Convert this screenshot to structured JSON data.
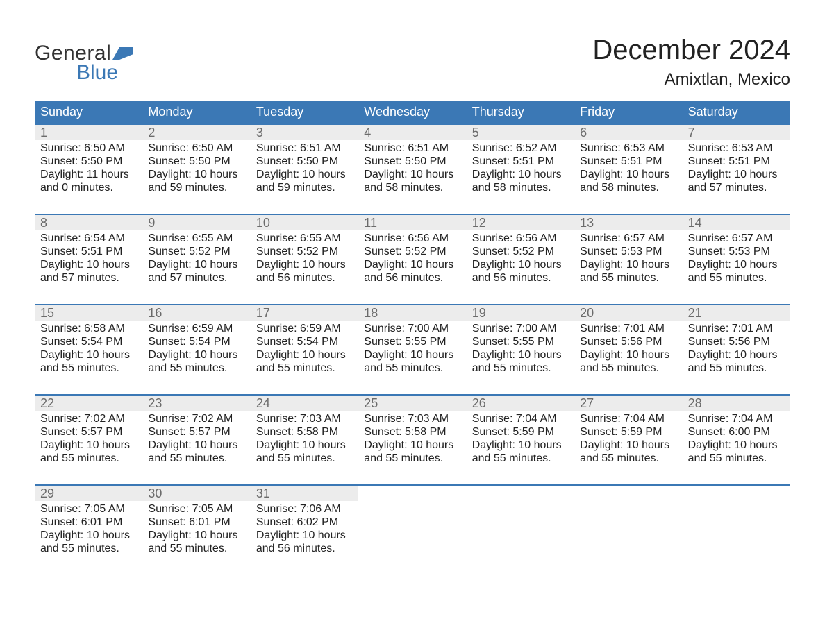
{
  "colors": {
    "header_bg": "#3b78b5",
    "header_text": "#ffffff",
    "daynum_bg": "#ececec",
    "daynum_text": "#6b6b6b",
    "body_text": "#222222",
    "week_border": "#3b78b5",
    "page_bg": "#ffffff",
    "logo_general": "#333333",
    "logo_blue": "#3b78b5"
  },
  "typography": {
    "title_fontsize": 40,
    "location_fontsize": 24,
    "dayheader_fontsize": 18,
    "daynum_fontsize": 18,
    "body_fontsize": 16,
    "logo_fontsize": 30
  },
  "logo": {
    "general": "General",
    "blue": "Blue"
  },
  "title": "December 2024",
  "location": "Amixtlan, Mexico",
  "dayheaders": [
    "Sunday",
    "Monday",
    "Tuesday",
    "Wednesday",
    "Thursday",
    "Friday",
    "Saturday"
  ],
  "labels": {
    "sunrise": "Sunrise:",
    "sunset": "Sunset:",
    "daylight": "Daylight:"
  },
  "weeks": [
    [
      {
        "num": "1",
        "sunrise": "6:50 AM",
        "sunset": "5:50 PM",
        "daylight": "11 hours and 0 minutes."
      },
      {
        "num": "2",
        "sunrise": "6:50 AM",
        "sunset": "5:50 PM",
        "daylight": "10 hours and 59 minutes."
      },
      {
        "num": "3",
        "sunrise": "6:51 AM",
        "sunset": "5:50 PM",
        "daylight": "10 hours and 59 minutes."
      },
      {
        "num": "4",
        "sunrise": "6:51 AM",
        "sunset": "5:50 PM",
        "daylight": "10 hours and 58 minutes."
      },
      {
        "num": "5",
        "sunrise": "6:52 AM",
        "sunset": "5:51 PM",
        "daylight": "10 hours and 58 minutes."
      },
      {
        "num": "6",
        "sunrise": "6:53 AM",
        "sunset": "5:51 PM",
        "daylight": "10 hours and 58 minutes."
      },
      {
        "num": "7",
        "sunrise": "6:53 AM",
        "sunset": "5:51 PM",
        "daylight": "10 hours and 57 minutes."
      }
    ],
    [
      {
        "num": "8",
        "sunrise": "6:54 AM",
        "sunset": "5:51 PM",
        "daylight": "10 hours and 57 minutes."
      },
      {
        "num": "9",
        "sunrise": "6:55 AM",
        "sunset": "5:52 PM",
        "daylight": "10 hours and 57 minutes."
      },
      {
        "num": "10",
        "sunrise": "6:55 AM",
        "sunset": "5:52 PM",
        "daylight": "10 hours and 56 minutes."
      },
      {
        "num": "11",
        "sunrise": "6:56 AM",
        "sunset": "5:52 PM",
        "daylight": "10 hours and 56 minutes."
      },
      {
        "num": "12",
        "sunrise": "6:56 AM",
        "sunset": "5:52 PM",
        "daylight": "10 hours and 56 minutes."
      },
      {
        "num": "13",
        "sunrise": "6:57 AM",
        "sunset": "5:53 PM",
        "daylight": "10 hours and 55 minutes."
      },
      {
        "num": "14",
        "sunrise": "6:57 AM",
        "sunset": "5:53 PM",
        "daylight": "10 hours and 55 minutes."
      }
    ],
    [
      {
        "num": "15",
        "sunrise": "6:58 AM",
        "sunset": "5:54 PM",
        "daylight": "10 hours and 55 minutes."
      },
      {
        "num": "16",
        "sunrise": "6:59 AM",
        "sunset": "5:54 PM",
        "daylight": "10 hours and 55 minutes."
      },
      {
        "num": "17",
        "sunrise": "6:59 AM",
        "sunset": "5:54 PM",
        "daylight": "10 hours and 55 minutes."
      },
      {
        "num": "18",
        "sunrise": "7:00 AM",
        "sunset": "5:55 PM",
        "daylight": "10 hours and 55 minutes."
      },
      {
        "num": "19",
        "sunrise": "7:00 AM",
        "sunset": "5:55 PM",
        "daylight": "10 hours and 55 minutes."
      },
      {
        "num": "20",
        "sunrise": "7:01 AM",
        "sunset": "5:56 PM",
        "daylight": "10 hours and 55 minutes."
      },
      {
        "num": "21",
        "sunrise": "7:01 AM",
        "sunset": "5:56 PM",
        "daylight": "10 hours and 55 minutes."
      }
    ],
    [
      {
        "num": "22",
        "sunrise": "7:02 AM",
        "sunset": "5:57 PM",
        "daylight": "10 hours and 55 minutes."
      },
      {
        "num": "23",
        "sunrise": "7:02 AM",
        "sunset": "5:57 PM",
        "daylight": "10 hours and 55 minutes."
      },
      {
        "num": "24",
        "sunrise": "7:03 AM",
        "sunset": "5:58 PM",
        "daylight": "10 hours and 55 minutes."
      },
      {
        "num": "25",
        "sunrise": "7:03 AM",
        "sunset": "5:58 PM",
        "daylight": "10 hours and 55 minutes."
      },
      {
        "num": "26",
        "sunrise": "7:04 AM",
        "sunset": "5:59 PM",
        "daylight": "10 hours and 55 minutes."
      },
      {
        "num": "27",
        "sunrise": "7:04 AM",
        "sunset": "5:59 PM",
        "daylight": "10 hours and 55 minutes."
      },
      {
        "num": "28",
        "sunrise": "7:04 AM",
        "sunset": "6:00 PM",
        "daylight": "10 hours and 55 minutes."
      }
    ],
    [
      {
        "num": "29",
        "sunrise": "7:05 AM",
        "sunset": "6:01 PM",
        "daylight": "10 hours and 55 minutes."
      },
      {
        "num": "30",
        "sunrise": "7:05 AM",
        "sunset": "6:01 PM",
        "daylight": "10 hours and 55 minutes."
      },
      {
        "num": "31",
        "sunrise": "7:06 AM",
        "sunset": "6:02 PM",
        "daylight": "10 hours and 56 minutes."
      },
      {
        "empty": true
      },
      {
        "empty": true
      },
      {
        "empty": true
      },
      {
        "empty": true
      }
    ]
  ]
}
